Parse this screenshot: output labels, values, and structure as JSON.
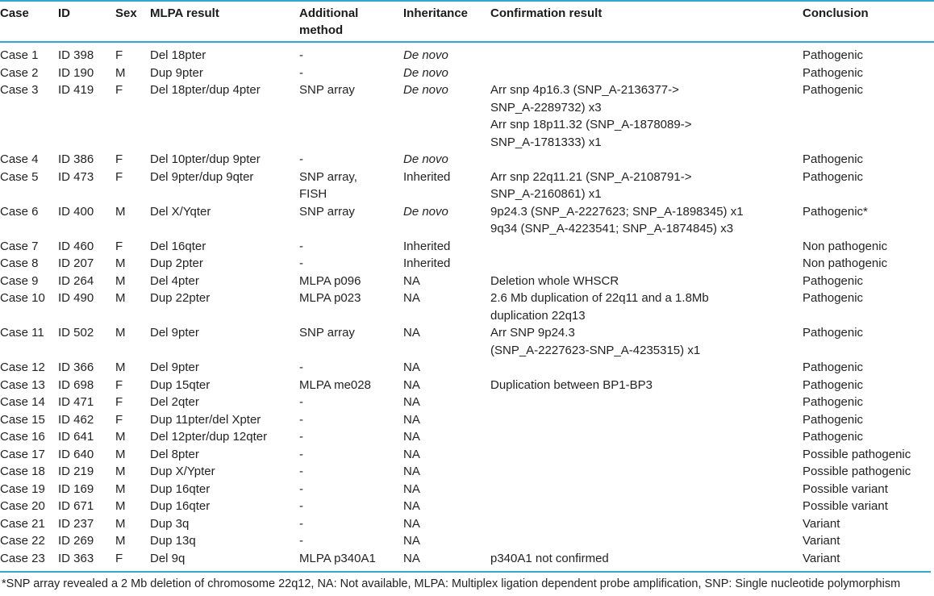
{
  "colors": {
    "rule": "#2fa9cf",
    "text": "#232323",
    "background": "#ffffff"
  },
  "table": {
    "columns": [
      {
        "key": "case",
        "label": "Case"
      },
      {
        "key": "id",
        "label": "ID"
      },
      {
        "key": "sex",
        "label": "Sex"
      },
      {
        "key": "mlpa",
        "label": "MLPA result"
      },
      {
        "key": "additional",
        "label": "Additional\nmethod"
      },
      {
        "key": "inheritance",
        "label": "Inheritance"
      },
      {
        "key": "confirmation",
        "label": "Confirmation result"
      },
      {
        "key": "conclusion",
        "label": "Conclusion"
      }
    ],
    "rows": [
      {
        "case": "Case 1",
        "id": "ID 398",
        "sex": "F",
        "mlpa": "Del 18pter",
        "additional": "-",
        "inheritance": "De novo",
        "inheritance_italic": true,
        "confirmation": "",
        "conclusion": "Pathogenic"
      },
      {
        "case": "Case 2",
        "id": "ID 190",
        "sex": "M",
        "mlpa": "Dup 9pter",
        "additional": "-",
        "inheritance": "De novo",
        "inheritance_italic": true,
        "confirmation": "",
        "conclusion": "Pathogenic"
      },
      {
        "case": "Case 3",
        "id": "ID 419",
        "sex": "F",
        "mlpa": "Del 18pter/dup 4pter",
        "additional": "SNP array",
        "inheritance": "De novo",
        "inheritance_italic": true,
        "confirmation": "Arr snp 4p16.3 (SNP_A-2136377->\nSNP_A-2289732) x3\nArr snp 18p11.32 (SNP_A-1878089->\nSNP_A-1781333) x1",
        "conclusion": "Pathogenic"
      },
      {
        "case": "Case 4",
        "id": "ID 386",
        "sex": "F",
        "mlpa": "Del 10pter/dup 9pter",
        "additional": "-",
        "inheritance": "De novo",
        "inheritance_italic": true,
        "confirmation": "",
        "conclusion": "Pathogenic"
      },
      {
        "case": "Case 5",
        "id": "ID 473",
        "sex": "F",
        "mlpa": "Del 9pter/dup 9qter",
        "additional": "SNP array,\nFISH",
        "inheritance": "Inherited",
        "inheritance_italic": false,
        "confirmation": "Arr snp 22q11.21 (SNP_A-2108791->\nSNP_A-2160861) x1",
        "conclusion": "Pathogenic"
      },
      {
        "case": "Case 6",
        "id": "ID 400",
        "sex": "M",
        "mlpa": "Del X/Yqter",
        "additional": "SNP array",
        "inheritance": "De novo",
        "inheritance_italic": true,
        "confirmation": "9p24.3 (SNP_A-2227623; SNP_A-1898345) x1\n9q34 (SNP_A-4223541; SNP_A-1874845) x3",
        "conclusion": "Pathogenic*"
      },
      {
        "case": "Case 7",
        "id": "ID 460",
        "sex": "F",
        "mlpa": "Del 16qter",
        "additional": "-",
        "inheritance": "Inherited",
        "inheritance_italic": false,
        "confirmation": "",
        "conclusion": "Non pathogenic"
      },
      {
        "case": "Case 8",
        "id": "ID 207",
        "sex": "M",
        "mlpa": "Dup 2pter",
        "additional": "-",
        "inheritance": "Inherited",
        "inheritance_italic": false,
        "confirmation": "",
        "conclusion": "Non pathogenic"
      },
      {
        "case": "Case 9",
        "id": "ID 264",
        "sex": "M",
        "mlpa": "Del 4pter",
        "additional": "MLPA p096",
        "inheritance": "NA",
        "inheritance_italic": false,
        "confirmation": "Deletion whole WHSCR",
        "conclusion": "Pathogenic"
      },
      {
        "case": "Case 10",
        "id": "ID 490",
        "sex": "M",
        "mlpa": "Dup 22pter",
        "additional": "MLPA p023",
        "inheritance": "NA",
        "inheritance_italic": false,
        "confirmation": "2.6 Mb duplication of 22q11 and a 1.8Mb\nduplication 22q13",
        "conclusion": "Pathogenic"
      },
      {
        "case": "Case 11",
        "id": "ID 502",
        "sex": "M",
        "mlpa": "Del 9pter",
        "additional": "SNP array",
        "inheritance": "NA",
        "inheritance_italic": false,
        "confirmation": "Arr SNP 9p24.3\n(SNP_A-2227623-SNP_A-4235315) x1",
        "conclusion": "Pathogenic"
      },
      {
        "case": "Case 12",
        "id": "ID 366",
        "sex": "M",
        "mlpa": "Del 9pter",
        "additional": "-",
        "inheritance": "NA",
        "inheritance_italic": false,
        "confirmation": "",
        "conclusion": "Pathogenic"
      },
      {
        "case": "Case 13",
        "id": "ID 698",
        "sex": "F",
        "mlpa": "Dup 15qter",
        "additional": "MLPA me028",
        "inheritance": "NA",
        "inheritance_italic": false,
        "confirmation": "Duplication between BP1-BP3",
        "conclusion": "Pathogenic"
      },
      {
        "case": "Case 14",
        "id": "ID 471",
        "sex": "F",
        "mlpa": "Del 2qter",
        "additional": "-",
        "inheritance": "NA",
        "inheritance_italic": false,
        "confirmation": "",
        "conclusion": "Pathogenic"
      },
      {
        "case": "Case 15",
        "id": "ID 462",
        "sex": "F",
        "mlpa": "Dup 11pter/del Xpter",
        "additional": "-",
        "inheritance": "NA",
        "inheritance_italic": false,
        "confirmation": "",
        "conclusion": "Pathogenic"
      },
      {
        "case": "Case 16",
        "id": "ID 641",
        "sex": "M",
        "mlpa": "Del 12pter/dup 12qter",
        "additional": "-",
        "inheritance": "NA",
        "inheritance_italic": false,
        "confirmation": "",
        "conclusion": "Pathogenic"
      },
      {
        "case": "Case 17",
        "id": "ID 640",
        "sex": "M",
        "mlpa": "Del 8pter",
        "additional": "-",
        "inheritance": "NA",
        "inheritance_italic": false,
        "confirmation": "",
        "conclusion": "Possible pathogenic"
      },
      {
        "case": "Case 18",
        "id": "ID 219",
        "sex": "M",
        "mlpa": "Dup X/Ypter",
        "additional": "-",
        "inheritance": "NA",
        "inheritance_italic": false,
        "confirmation": "",
        "conclusion": "Possible pathogenic"
      },
      {
        "case": "Case 19",
        "id": "ID 169",
        "sex": "M",
        "mlpa": "Dup 16qter",
        "additional": "-",
        "inheritance": "NA",
        "inheritance_italic": false,
        "confirmation": "",
        "conclusion": "Possible variant"
      },
      {
        "case": "Case 20",
        "id": "ID 671",
        "sex": "M",
        "mlpa": "Dup 16qter",
        "additional": "-",
        "inheritance": "NA",
        "inheritance_italic": false,
        "confirmation": "",
        "conclusion": "Possible variant"
      },
      {
        "case": "Case 21",
        "id": "ID 237",
        "sex": "M",
        "mlpa": "Dup 3q",
        "additional": "-",
        "inheritance": "NA",
        "inheritance_italic": false,
        "confirmation": "",
        "conclusion": "Variant"
      },
      {
        "case": "Case 22",
        "id": "ID 269",
        "sex": "M",
        "mlpa": "Dup 13q",
        "additional": "-",
        "inheritance": "NA",
        "inheritance_italic": false,
        "confirmation": "",
        "conclusion": "Variant"
      },
      {
        "case": "Case 23",
        "id": "ID 363",
        "sex": "F",
        "mlpa": "Del 9q",
        "additional": "MLPA p340A1",
        "inheritance": "NA",
        "inheritance_italic": false,
        "confirmation": "p340A1 not confirmed",
        "conclusion": "Variant"
      }
    ],
    "footnote": "*SNP array revealed a 2 Mb deletion of chromosome 22q12, NA: Not available, MLPA: Multiplex ligation dependent probe amplification, SNP: Single nucleotide polymorphism"
  }
}
